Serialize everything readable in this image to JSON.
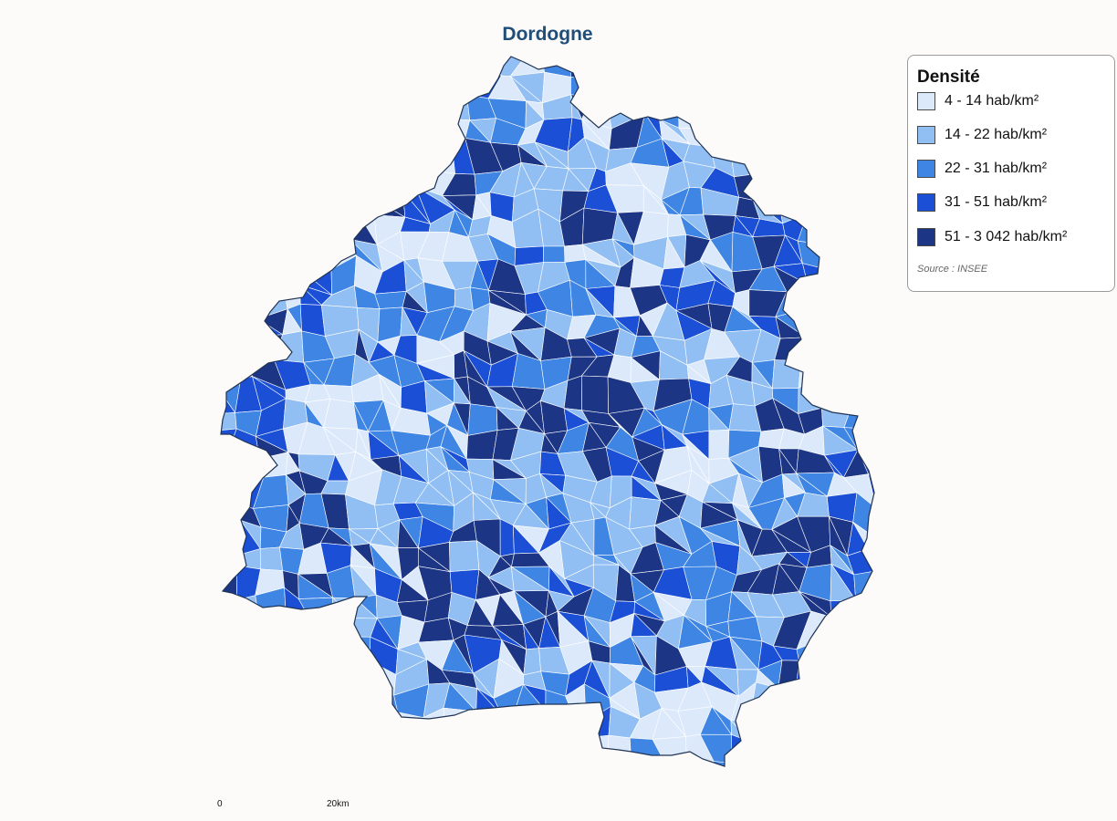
{
  "map": {
    "title": "Dordogne",
    "legend": {
      "title": "Densité",
      "classes": [
        {
          "label": "4 - 14 hab/km²",
          "color": "#dce9fb"
        },
        {
          "label": "14 - 22 hab/km²",
          "color": "#92bff3"
        },
        {
          "label": "22 - 31 hab/km²",
          "color": "#3f86e4"
        },
        {
          "label": "31 - 51 hab/km²",
          "color": "#1a4fd6"
        },
        {
          "label": "51 - 3 042 hab/km²",
          "color": "#1c3585"
        }
      ],
      "source": "Source : INSEE"
    },
    "scale": {
      "start_label": "0",
      "end_label": "20km"
    },
    "border_color": "#1f3354",
    "commune_line_color": "#ffffff"
  }
}
